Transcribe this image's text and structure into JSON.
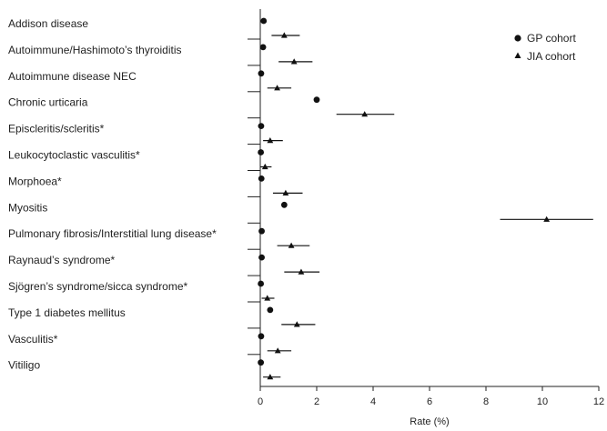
{
  "chart_data": {
    "type": "scatter",
    "subtype": "forest-plot",
    "title": "",
    "xlabel": "Rate (%)",
    "ylabel": "",
    "xlim": [
      0,
      12
    ],
    "xticks": [
      0,
      2,
      4,
      6,
      8,
      10,
      12
    ],
    "grid": false,
    "legend_position": "top-right",
    "categories": [
      "Addison disease",
      "Autoimmune/Hashimoto’s thyroiditis",
      "Autoimmune disease NEC",
      "Chronic urticaria",
      "Episcleritis/scleritis*",
      "Leukocytoclastic vasculitis*",
      "Morphoea*",
      "Myositis",
      "Pulmonary fibrosis/Interstitial lung disease*",
      "Raynaud’s syndrome*",
      "Sjögren’s syndrome/sicca syndrome*",
      "Type 1 diabetes mellitus",
      "Vasculitis*",
      "Vitiligo"
    ],
    "series": [
      {
        "name": "GP cohort",
        "marker": "circle",
        "values": [
          0.12,
          0.1,
          0.03,
          2.0,
          0.03,
          0.02,
          0.04,
          0.85,
          0.05,
          0.05,
          0.02,
          0.35,
          0.03,
          0.02
        ]
      },
      {
        "name": "JIA cohort",
        "marker": "triangle",
        "values": [
          0.85,
          1.2,
          0.6,
          3.7,
          0.35,
          0.17,
          0.9,
          10.15,
          1.1,
          1.45,
          0.25,
          1.3,
          0.62,
          0.35
        ],
        "ci_low": [
          0.4,
          0.65,
          0.25,
          2.7,
          0.1,
          0.0,
          0.45,
          8.5,
          0.6,
          0.85,
          0.05,
          0.75,
          0.25,
          0.1
        ],
        "ci_high": [
          1.4,
          1.85,
          1.1,
          4.75,
          0.8,
          0.4,
          1.5,
          11.8,
          1.75,
          2.1,
          0.5,
          1.95,
          1.1,
          0.72
        ]
      }
    ]
  }
}
